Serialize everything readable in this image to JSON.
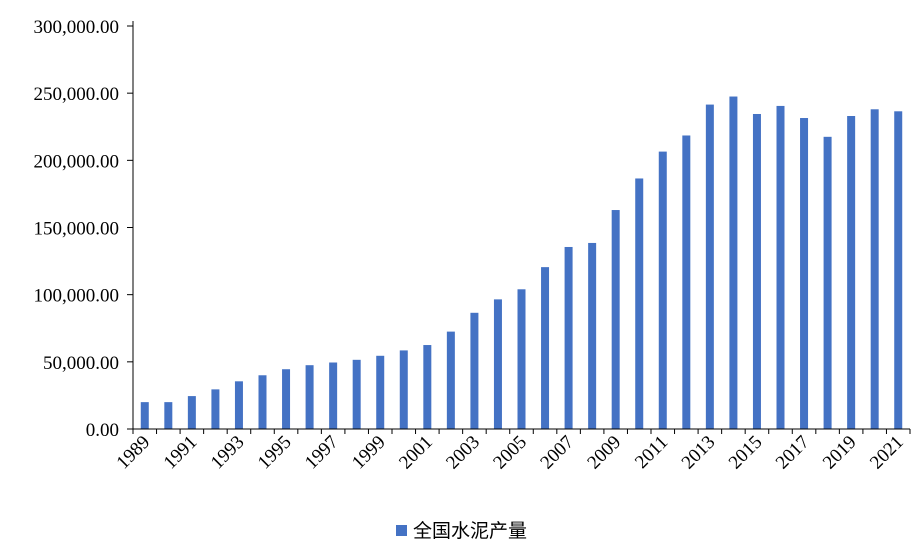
{
  "chart_data": {
    "type": "bar",
    "categories": [
      "1989",
      "1990",
      "1991",
      "1992",
      "1993",
      "1994",
      "1995",
      "1996",
      "1997",
      "1998",
      "1999",
      "2000",
      "2001",
      "2002",
      "2003",
      "2004",
      "2005",
      "2006",
      "2007",
      "2008",
      "2009",
      "2010",
      "2011",
      "2012",
      "2013",
      "2014",
      "2015",
      "2016",
      "2017",
      "2018",
      "2019",
      "2020",
      "2021"
    ],
    "x_tick_labels": [
      "1989",
      "1991",
      "1993",
      "1995",
      "1997",
      "1999",
      "2001",
      "2003",
      "2005",
      "2007",
      "2009",
      "2011",
      "2013",
      "2015",
      "2017",
      "2019",
      "2021"
    ],
    "series": [
      {
        "name": "全国水泥产量",
        "color": "#4472C4",
        "values": [
          20000,
          20000,
          24500,
          29500,
          35500,
          40000,
          44500,
          47500,
          49500,
          51500,
          54500,
          58500,
          62500,
          72500,
          86500,
          96500,
          104000,
          120500,
          135500,
          138500,
          163000,
          186500,
          206500,
          218500,
          241500,
          247500,
          234500,
          240500,
          231500,
          217500,
          233000,
          238000,
          236500
        ]
      }
    ],
    "y_tick_labels": [
      "0.00",
      "50,000.00",
      "100,000.00",
      "150,000.00",
      "200,000.00",
      "250,000.00",
      "300,000.00"
    ],
    "ylim": [
      0,
      300000
    ],
    "title": "",
    "xlabel": "",
    "ylabel": "",
    "grid": false,
    "legend_position": "bottom-center"
  }
}
